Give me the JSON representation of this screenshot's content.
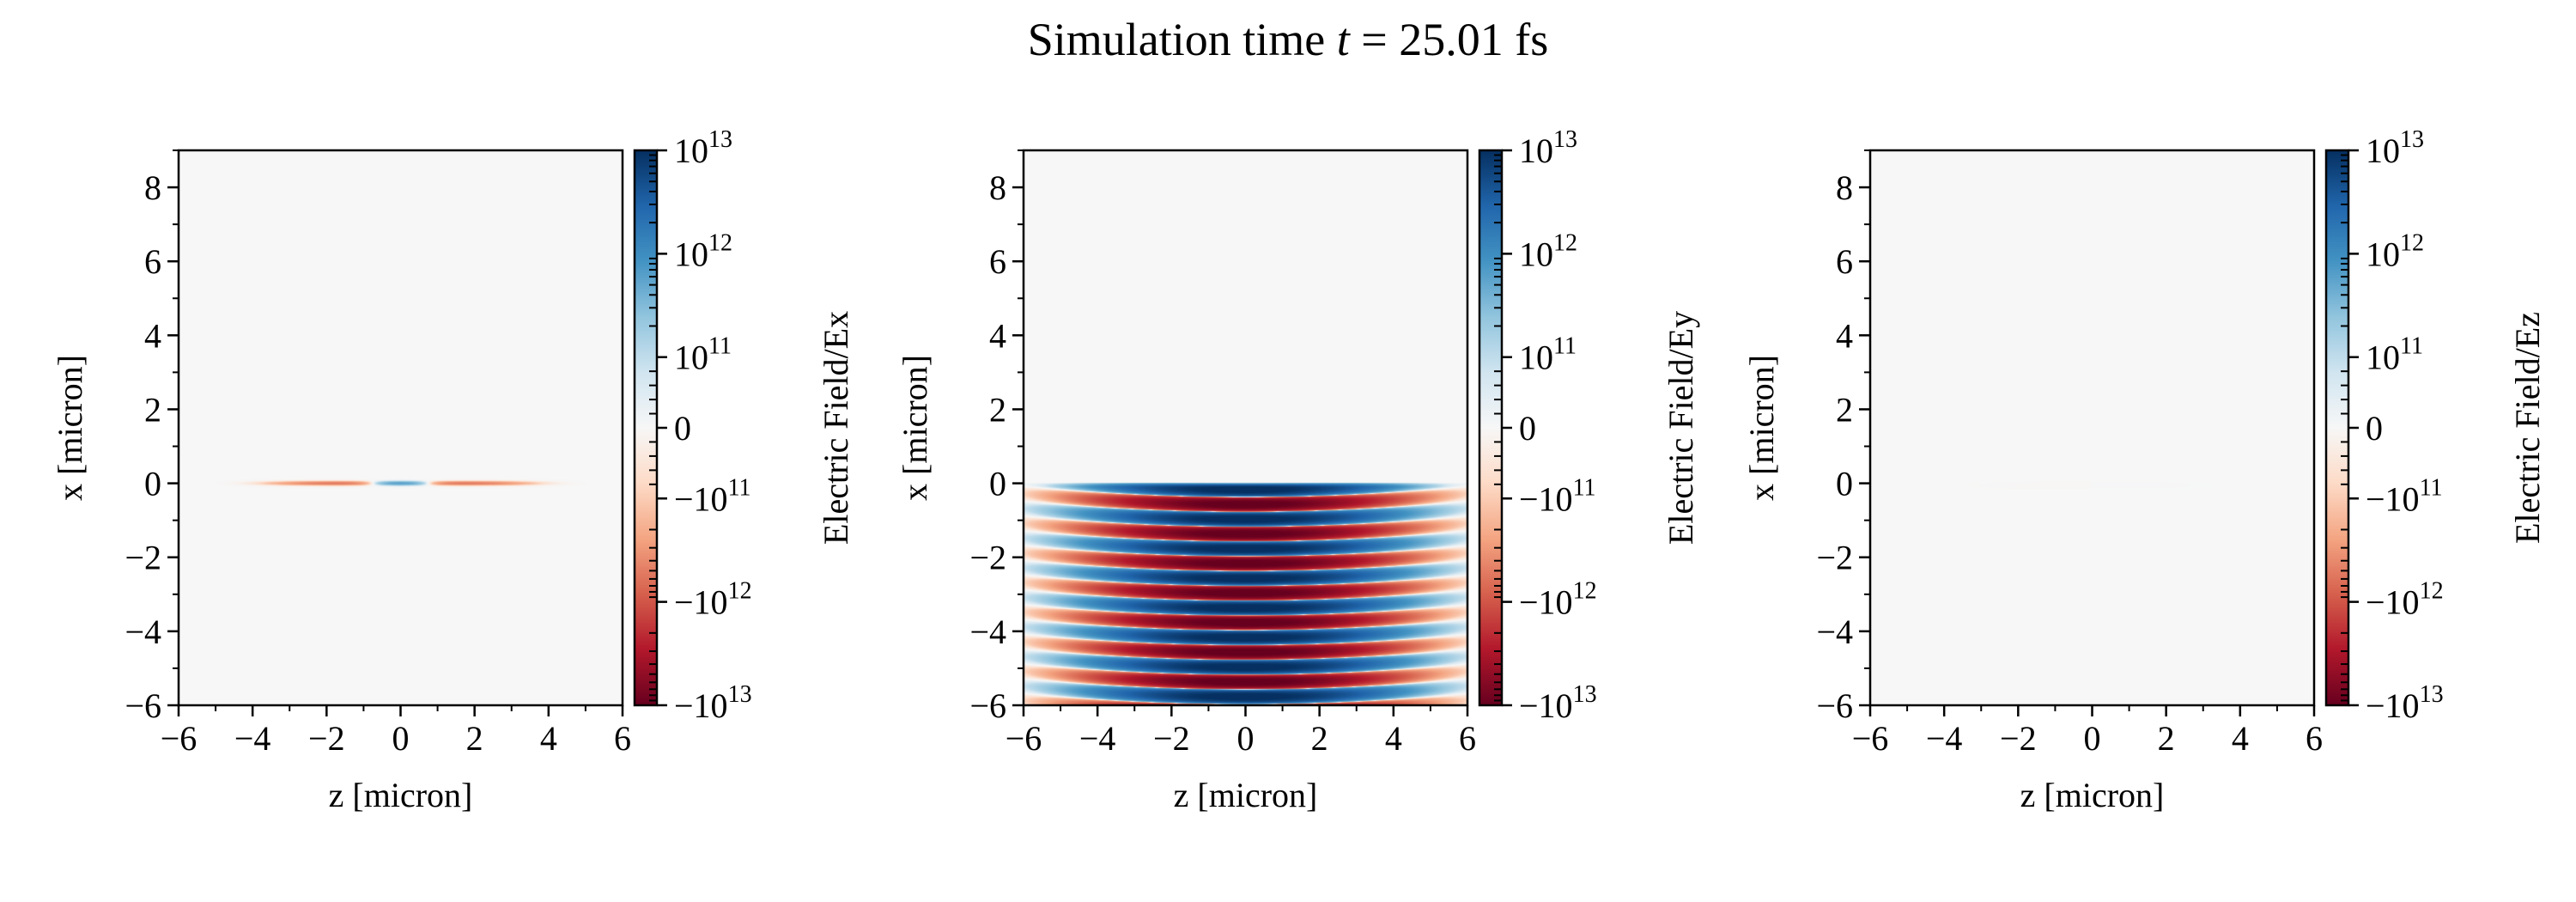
{
  "title": {
    "prefix": "Simulation time ",
    "var": "t",
    "suffix": " = 25.01 fs"
  },
  "colors": {
    "axis": "#000000",
    "background": "#f7f7f7"
  },
  "chart_data": [
    {
      "type": "heatmap",
      "field": "Ex",
      "xlabel": "z [micron]",
      "ylabel": "x [micron]",
      "colorbar_label": "Electric Field/Ex",
      "xlim": [
        -6,
        6
      ],
      "ylim": [
        -6,
        9
      ],
      "colormap": "RdBu",
      "norm": "symlog",
      "vmin": -10000000000000.0,
      "vmax": 10000000000000.0,
      "content": "thin signal along x=0 for z from -4 to 4"
    },
    {
      "type": "heatmap",
      "field": "Ey",
      "xlabel": "z [micron]",
      "ylabel": "x [micron]",
      "colorbar_label": "Electric Field/Ey",
      "xlim": [
        -6,
        6
      ],
      "ylim": [
        -6,
        9
      ],
      "colormap": "RdBu",
      "norm": "symlog",
      "vmin": -10000000000000.0,
      "vmax": 10000000000000.0,
      "content": "alternating saturated bands filling x from -6 to 0, period about 0.8 micron"
    },
    {
      "type": "heatmap",
      "field": "Ez",
      "xlabel": "z [micron]",
      "ylabel": "x [micron]",
      "colorbar_label": "Electric Field/Ez",
      "xlim": [
        -6,
        6
      ],
      "ylim": [
        -6,
        9
      ],
      "colormap": "RdBu",
      "norm": "symlog",
      "vmin": -10000000000000.0,
      "vmax": 10000000000000.0,
      "content": "near-zero, faint trace along x=0"
    }
  ],
  "axes": {
    "xticks": [
      {
        "v": -6,
        "label": "−6"
      },
      {
        "v": -4,
        "label": "−4"
      },
      {
        "v": -2,
        "label": "−2"
      },
      {
        "v": 0,
        "label": "0"
      },
      {
        "v": 2,
        "label": "2"
      },
      {
        "v": 4,
        "label": "4"
      },
      {
        "v": 6,
        "label": "6"
      }
    ],
    "yticks": [
      {
        "v": -6,
        "label": "−6"
      },
      {
        "v": -4,
        "label": "−4"
      },
      {
        "v": -2,
        "label": "−2"
      },
      {
        "v": 0,
        "label": "0"
      },
      {
        "v": 2,
        "label": "2"
      },
      {
        "v": 4,
        "label": "4"
      },
      {
        "v": 6,
        "label": "6"
      },
      {
        "v": 8,
        "label": "8"
      }
    ],
    "colorbar_ticks": [
      {
        "v": 10000000000000.0,
        "base": "10",
        "exp": "13"
      },
      {
        "v": 1000000000000.0,
        "base": "10",
        "exp": "12"
      },
      {
        "v": 100000000000.0,
        "base": "10",
        "exp": "11"
      },
      {
        "v": 0,
        "base": "0",
        "exp": ""
      },
      {
        "v": -100000000000.0,
        "base": "−10",
        "exp": "11"
      },
      {
        "v": -1000000000000.0,
        "base": "−10",
        "exp": "12"
      },
      {
        "v": -10000000000000.0,
        "base": "−10",
        "exp": "13"
      }
    ]
  }
}
